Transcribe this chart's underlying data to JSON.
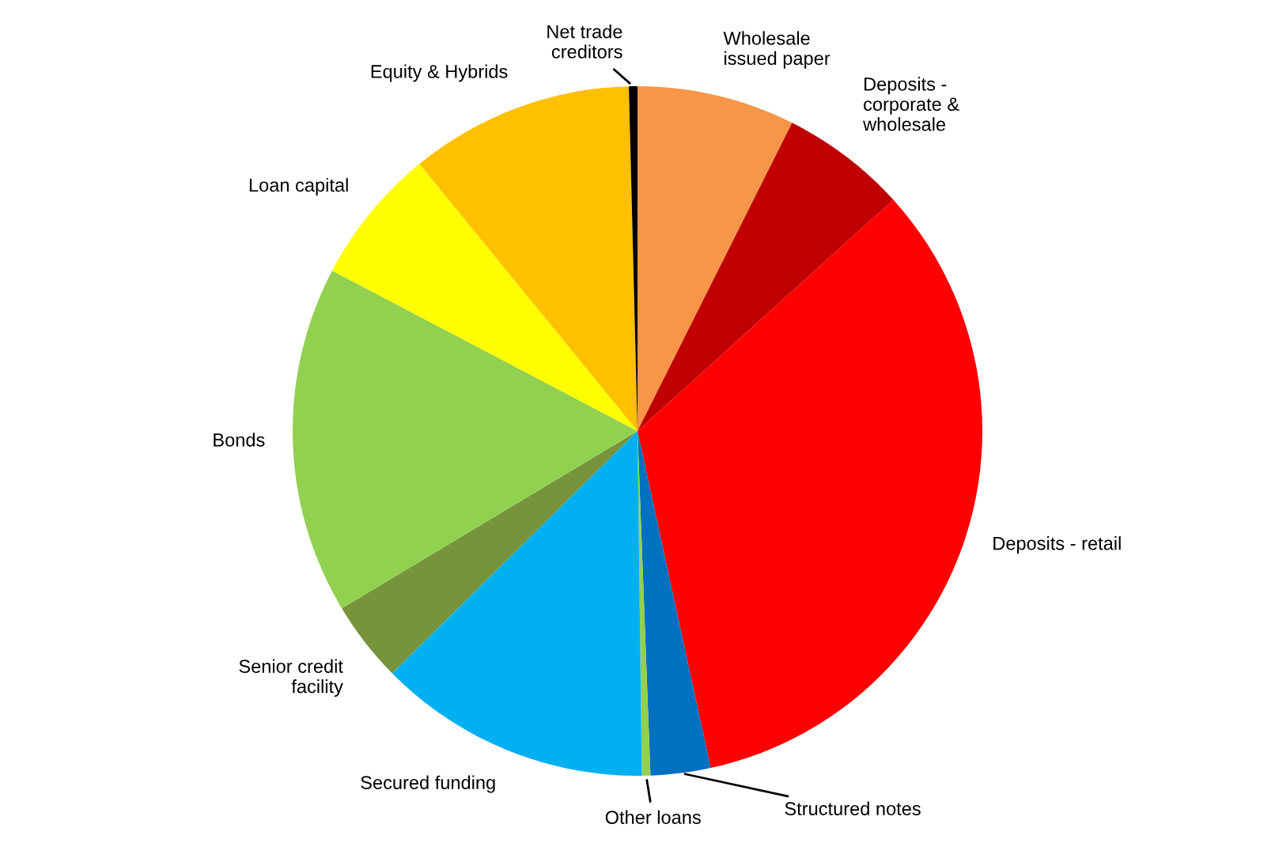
{
  "chart_data": {
    "type": "pie",
    "categories": [
      "Wholesale issued paper",
      "Deposits - corporate & wholesale",
      "Deposits - retail",
      "Structured notes",
      "Other loans",
      "Secured funding",
      "Senior credit facility",
      "Bonds",
      "Loan capital",
      "Equity & Hybrids",
      "Net trade creditors"
    ],
    "values": [
      7.4,
      5.9,
      33.3,
      2.8,
      0.4,
      12.8,
      3.8,
      16.3,
      6.4,
      10.5,
      0.4
    ],
    "colors": [
      "#f79646",
      "#c00000",
      "#ff0000",
      "#0070c0",
      "#92d050",
      "#00b0f0",
      "#77933c",
      "#92d050",
      "#ffff00",
      "#ffc000",
      "#000000"
    ],
    "legend": false
  }
}
